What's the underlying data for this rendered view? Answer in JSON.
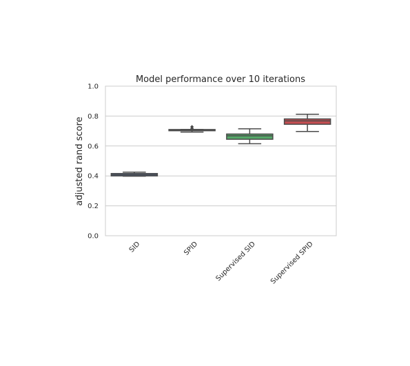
{
  "chart_data": {
    "type": "box",
    "title": "Model performance over 10 iterations",
    "xlabel": "",
    "ylabel": "adjusted rand score",
    "ylim": [
      0.0,
      1.0
    ],
    "yticks": [
      "0.0",
      "0.2",
      "0.4",
      "0.6",
      "0.8",
      "1.0"
    ],
    "grid": "horizontal",
    "categories": [
      "SID",
      "SPID",
      "Supervised SID",
      "Supervised SPID"
    ],
    "colors": [
      "#4c72b0",
      "#55a868",
      "#55a868",
      "#c44e52"
    ],
    "boxes": [
      {
        "category": "SID",
        "whisker_low": 0.398,
        "q1": 0.4,
        "median": 0.408,
        "q3": 0.416,
        "whisker_high": 0.425,
        "outliers": [],
        "color": "#4c72b0"
      },
      {
        "category": "SPID",
        "whisker_low": 0.693,
        "q1": 0.702,
        "median": 0.706,
        "q3": 0.71,
        "whisker_high": 0.71,
        "outliers": [
          0.717,
          0.728
        ],
        "color": "#55a868"
      },
      {
        "category": "Supervised SID",
        "whisker_low": 0.615,
        "q1": 0.645,
        "median": 0.668,
        "q3": 0.68,
        "whisker_high": 0.715,
        "outliers": [],
        "color": "#55a868"
      },
      {
        "category": "Supervised SPID",
        "whisker_low": 0.697,
        "q1": 0.745,
        "median": 0.768,
        "q3": 0.781,
        "whisker_high": 0.812,
        "outliers": [],
        "color": "#c44e52"
      }
    ]
  }
}
